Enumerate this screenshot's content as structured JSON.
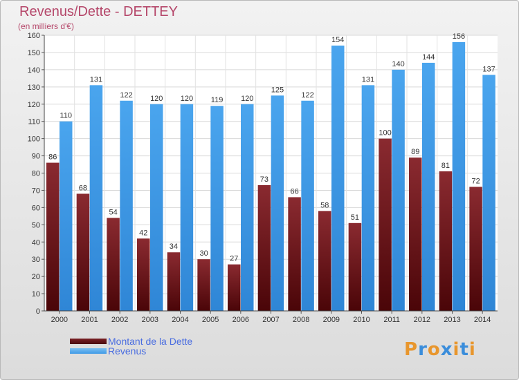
{
  "colors": {
    "dette": "#7a1f24",
    "revenus": "#3f9ae6",
    "title": "#b5476a",
    "legend_text": "#4a6de0"
  },
  "logo": {
    "text": "Proxiti",
    "letter_colors": [
      "#e8962d",
      "#3a8ddb",
      "#e8962d",
      "#3a8ddb",
      "#e8962d",
      "#3a8ddb",
      "#e8962d"
    ]
  },
  "chart_data": {
    "type": "bar",
    "title": "Revenus/Dette - DETTEY",
    "subtitle": "(en milliers d'€)",
    "xlabel": "",
    "ylabel": "",
    "ylim": [
      0,
      160
    ],
    "ytick_step": 10,
    "grid": true,
    "legend_position": "bottom-left",
    "categories": [
      "2000",
      "2001",
      "2002",
      "2003",
      "2004",
      "2005",
      "2006",
      "2007",
      "2008",
      "2009",
      "2010",
      "2011",
      "2012",
      "2013",
      "2014"
    ],
    "series": [
      {
        "name": "Montant de la Dette",
        "color": "#7a1f24",
        "values": [
          86,
          68,
          54,
          42,
          34,
          30,
          27,
          73,
          66,
          58,
          51,
          100,
          89,
          81,
          72
        ]
      },
      {
        "name": "Revenus",
        "color": "#3f9ae6",
        "values": [
          110,
          131,
          122,
          120,
          120,
          119,
          120,
          125,
          122,
          154,
          131,
          140,
          144,
          156,
          137
        ]
      }
    ]
  }
}
